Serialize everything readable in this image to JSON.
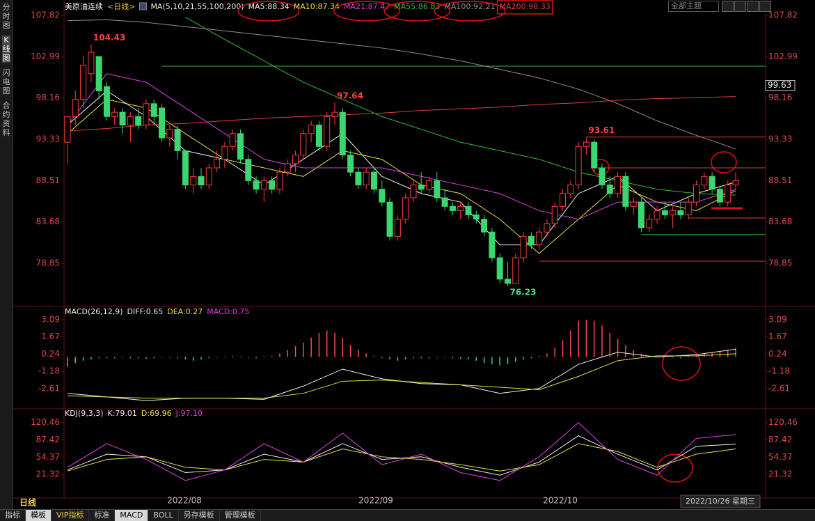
{
  "sidebar": [
    "分时图",
    "K线图",
    "闪电图",
    "合约资料"
  ],
  "theme": "全部主题",
  "period_tab": "日线",
  "dates": [
    "2022/08",
    "2022/09",
    "2022/10"
  ],
  "cursor_date": "2022/10/26 星期三",
  "bottom_tabs": [
    "指标",
    "模板",
    "VIP指标",
    "标准",
    "MACD",
    "BOLL",
    "另存模板",
    "管理模板"
  ],
  "chart_data": [
    {
      "type": "candlestick",
      "title": "美原油连续",
      "period": "<日线>",
      "indicator": "MA(5,10,21,55,100,200)",
      "up_color": "#ff3c3c",
      "down_color": "#3cd66e",
      "ylim": [
        73.97,
        108.47
      ],
      "yticks": [
        107.82,
        102.99,
        98.16,
        93.33,
        88.51,
        83.68,
        78.85
      ],
      "ohlc": [
        [
          93,
          96,
          90.5,
          96
        ],
        [
          96,
          99,
          95,
          98
        ],
        [
          98,
          103,
          97,
          102
        ],
        [
          101,
          104.43,
          100,
          103.5
        ],
        [
          103,
          103,
          98,
          99
        ],
        [
          99.5,
          100,
          95.5,
          96
        ],
        [
          96,
          97,
          95,
          96.5
        ],
        [
          96.5,
          97,
          94,
          95
        ],
        [
          95,
          96.5,
          93,
          96
        ],
        [
          96,
          97,
          94.5,
          95
        ],
        [
          95,
          98,
          94.5,
          97.5
        ],
        [
          97.5,
          98,
          95,
          96
        ],
        [
          97,
          97.5,
          93,
          93.5
        ],
        [
          93.5,
          95,
          92.5,
          94.5
        ],
        [
          94.5,
          95,
          91,
          92
        ],
        [
          92,
          92,
          87.5,
          88
        ],
        [
          88,
          90,
          87,
          89
        ],
        [
          89,
          90,
          87.5,
          88
        ],
        [
          88,
          90.5,
          87.5,
          90
        ],
        [
          90,
          92,
          89.5,
          91
        ],
        [
          91,
          93,
          90,
          92.5
        ],
        [
          92.5,
          94.5,
          92,
          94
        ],
        [
          94,
          94.5,
          90.5,
          91
        ],
        [
          91,
          91.5,
          88,
          88.5
        ],
        [
          88.5,
          89,
          87,
          87.5
        ],
        [
          87.5,
          89,
          86,
          88.5
        ],
        [
          88.5,
          89,
          87,
          87.5
        ],
        [
          87.5,
          90,
          87,
          89.5
        ],
        [
          89.5,
          91,
          89,
          90.5
        ],
        [
          90.5,
          92,
          89.5,
          91.5
        ],
        [
          91.5,
          94.5,
          91,
          94
        ],
        [
          94,
          95.5,
          93,
          95
        ],
        [
          95,
          95.5,
          92,
          92.5
        ],
        [
          92.5,
          96.5,
          92,
          96
        ],
        [
          96,
          97.64,
          95,
          96.5
        ],
        [
          96.5,
          97,
          91,
          91.5
        ],
        [
          91.5,
          92,
          89,
          89.5
        ],
        [
          89.5,
          90,
          87.5,
          88
        ],
        [
          88,
          90,
          87.5,
          89.5
        ],
        [
          89.5,
          90,
          87,
          87.5
        ],
        [
          87.5,
          88.5,
          85.5,
          86
        ],
        [
          86,
          86.5,
          81.5,
          82
        ],
        [
          82,
          84.5,
          81.5,
          84
        ],
        [
          84,
          87,
          83.5,
          86.5
        ],
        [
          86.5,
          88.5,
          86,
          88
        ],
        [
          88,
          89.5,
          87,
          87.5
        ],
        [
          87.5,
          89,
          87,
          88.5
        ],
        [
          88.5,
          89.5,
          86,
          86.5
        ],
        [
          86.5,
          87.5,
          85,
          85.5
        ],
        [
          85.5,
          86,
          84.5,
          85
        ],
        [
          85,
          86,
          84,
          85.5
        ],
        [
          85.5,
          86,
          84,
          84.5
        ],
        [
          84.5,
          85,
          83.5,
          84
        ],
        [
          84,
          84.5,
          82,
          82.5
        ],
        [
          82.5,
          83,
          79,
          79.5
        ],
        [
          79.5,
          80,
          76.5,
          77
        ],
        [
          77,
          79,
          76.23,
          76.5
        ],
        [
          76.5,
          80,
          76.5,
          79.5
        ],
        [
          79.5,
          82.5,
          79,
          82
        ],
        [
          82,
          82.5,
          80.5,
          81
        ],
        [
          81,
          83,
          80.5,
          82.5
        ],
        [
          82.5,
          84,
          82,
          83.5
        ],
        [
          83.5,
          86,
          83,
          85.5
        ],
        [
          85.5,
          87.5,
          85,
          87
        ],
        [
          87,
          88.5,
          86.5,
          88
        ],
        [
          88,
          93,
          87.5,
          92.5
        ],
        [
          92.5,
          93.61,
          91.5,
          93
        ],
        [
          93,
          93.3,
          89.5,
          90
        ],
        [
          90,
          90.5,
          87.5,
          88
        ],
        [
          88,
          89,
          86.5,
          87
        ],
        [
          87,
          89.5,
          86.5,
          89
        ],
        [
          89,
          89.5,
          85,
          85.5
        ],
        [
          85.5,
          86.5,
          84.5,
          86
        ],
        [
          86,
          86.5,
          82.5,
          83
        ],
        [
          83,
          84.5,
          82.5,
          84
        ],
        [
          84,
          85.5,
          83.5,
          85
        ],
        [
          85,
          86,
          84,
          84.5
        ],
        [
          84.5,
          85.5,
          83,
          85
        ],
        [
          85,
          86,
          84,
          84.5
        ],
        [
          84.5,
          86.5,
          84,
          86
        ],
        [
          86,
          88.5,
          85.5,
          88
        ],
        [
          88,
          89.5,
          87.5,
          89
        ],
        [
          89,
          89.5,
          87,
          87.5
        ],
        [
          87.5,
          88,
          85.5,
          86
        ],
        [
          86,
          88.5,
          85.5,
          88
        ],
        [
          88,
          89.5,
          87.5,
          88.5
        ]
      ],
      "x": [
        0,
        5,
        10,
        15,
        20,
        25,
        30,
        35,
        40,
        45,
        50,
        55,
        60,
        65,
        70,
        75,
        80,
        85
      ],
      "series": [
        {
          "name": "MA5:88.34",
          "color": "#f0f0f0",
          "values": [
            95,
            99,
            96,
            92,
            91,
            88,
            91,
            94,
            89,
            87,
            86,
            81,
            81,
            87,
            89,
            85,
            87,
            88.34
          ]
        },
        {
          "name": "MA10:87.34",
          "color": "#e8e040",
          "values": [
            94,
            98,
            97,
            94,
            91,
            90,
            89,
            92,
            91,
            88,
            87,
            84,
            80,
            84,
            88,
            86,
            85,
            87.34
          ]
        },
        {
          "name": "MA21:87.47",
          "color": "#e040e0",
          "values": [
            95,
            101,
            100,
            97,
            94,
            91,
            90,
            90,
            90,
            89,
            88,
            87,
            85,
            84,
            86,
            86,
            86,
            87.47
          ]
        },
        {
          "name": "MA55:86.83",
          "color": "#30c030",
          "values": [
            null,
            null,
            null,
            107.6,
            105,
            102.5,
            100,
            98,
            96,
            94.5,
            93,
            92,
            91,
            89.5,
            88.5,
            87.5,
            87,
            86.83
          ]
        },
        {
          "name": "MA100:92.21",
          "color": "#909090",
          "values": [
            107.2,
            107.3,
            107,
            106.5,
            106,
            105.5,
            105,
            104.5,
            104,
            103.3,
            102.5,
            101.5,
            100.5,
            99.2,
            97.5,
            95.5,
            93.8,
            92.21
          ]
        },
        {
          "name": "MA200:98.33",
          "color": "#e03c3c",
          "values": [
            94.3,
            94.6,
            95,
            95.2,
            95.5,
            95.8,
            96,
            96.2,
            96.4,
            96.7,
            96.9,
            97.1,
            97.4,
            97.6,
            97.9,
            98.1,
            98.2,
            98.33
          ]
        }
      ],
      "extremes": [
        104.43,
        97.64,
        93.61,
        76.23
      ],
      "levels": [
        {
          "value": 101.88,
          "start": 12,
          "color": "#30c030"
        },
        {
          "value": 93.6,
          "start": 66,
          "color": "#e03c3c"
        },
        {
          "value": 90.0,
          "start": 67,
          "color": "#e03c3c"
        },
        {
          "value": 84.14,
          "start": 79,
          "color": "#e03c3c"
        },
        {
          "value": 82.2,
          "start": 73,
          "color": "#30c030"
        },
        {
          "value": 79.1,
          "start": 60,
          "color": "#e03c3c"
        }
      ],
      "last_price": 99.63
    },
    {
      "type": "macd",
      "title": "MACD(26,12,9)",
      "ylim": [
        -4.17,
        3.78
      ],
      "yticks": [
        3.09,
        1.67,
        0.24,
        -1.18,
        -2.61
      ],
      "up_color": "#ff4c4c",
      "down_color": "#3cc8a0",
      "x": [
        0,
        5,
        10,
        15,
        20,
        25,
        30,
        35,
        40,
        45,
        50,
        55,
        60,
        65,
        70,
        75,
        80,
        85
      ],
      "series": [
        {
          "name": "DIFF:0.65",
          "color": "#f0f0f0",
          "values": [
            -3.0,
            -3.3,
            -3.6,
            -3.4,
            -3.4,
            -3.5,
            -2.4,
            -1.0,
            -1.8,
            -2.2,
            -2.3,
            -3.0,
            -2.6,
            -0.6,
            0.4,
            0.0,
            0.2,
            0.65
          ]
        },
        {
          "name": "DEA:0.27",
          "color": "#e8e040",
          "values": [
            -3.2,
            -3.3,
            -3.4,
            -3.4,
            -3.4,
            -3.4,
            -3.0,
            -2.0,
            -1.9,
            -2.1,
            -2.3,
            -2.5,
            -2.7,
            -1.6,
            -0.3,
            0.1,
            0.1,
            0.27
          ]
        }
      ],
      "histogram": {
        "name": "MACD:0.75",
        "color": "#e040e0",
        "values": [
          -0.8,
          -0.5,
          -0.3,
          -0.2,
          -0.1,
          -0.1,
          -0.1,
          -0.05,
          -0.1,
          -0.1,
          -0.15,
          -0.1,
          -0.05,
          -0.05,
          -0.1,
          -0.2,
          -0.3,
          -0.2,
          -0.1,
          -0.05,
          0.05,
          0.1,
          0.05,
          -0.05,
          -0.1,
          0.05,
          0.1,
          0.3,
          0.6,
          0.9,
          1.2,
          1.6,
          2.0,
          2.2,
          2.0,
          1.6,
          1.0,
          0.6,
          0.3,
          0.1,
          -0.1,
          -0.2,
          -0.3,
          -0.2,
          -0.1,
          -0.1,
          -0.1,
          -0.05,
          -0.05,
          -0.1,
          -0.15,
          -0.2,
          -0.3,
          -0.5,
          -0.6,
          -0.7,
          -0.6,
          -0.4,
          -0.2,
          -0.1,
          0.1,
          0.3,
          0.8,
          1.4,
          2.2,
          3.0,
          3.09,
          3.0,
          2.6,
          2.0,
          1.5,
          1.0,
          0.6,
          0.3,
          0.1,
          0.05,
          0.0,
          -0.05,
          -0.1,
          0.05,
          0.1,
          0.3,
          0.4,
          0.5,
          0.6,
          0.75
        ]
      }
    },
    {
      "type": "line",
      "title": "KDJ(9,3,3)",
      "ylim": [
        -19.4,
        139.5
      ],
      "yticks": [
        120.46,
        87.42,
        54.37,
        21.32
      ],
      "x": [
        0,
        5,
        10,
        15,
        20,
        25,
        30,
        35,
        40,
        45,
        50,
        55,
        60,
        65,
        70,
        75,
        80,
        85
      ],
      "series": [
        {
          "name": "K:79.01",
          "color": "#f0f0f0",
          "values": [
            30,
            60,
            55,
            25,
            30,
            60,
            45,
            80,
            50,
            55,
            35,
            20,
            45,
            95,
            60,
            30,
            75,
            79.01
          ]
        },
        {
          "name": "D:69.96",
          "color": "#e8e040",
          "values": [
            28,
            50,
            55,
            35,
            30,
            50,
            45,
            70,
            55,
            50,
            40,
            28,
            40,
            80,
            65,
            35,
            60,
            69.96
          ]
        },
        {
          "name": "J:97.10",
          "color": "#e040e0",
          "values": [
            35,
            80,
            50,
            10,
            30,
            80,
            45,
            100,
            40,
            60,
            25,
            10,
            55,
            120,
            50,
            20,
            90,
            97.1
          ]
        }
      ]
    }
  ]
}
